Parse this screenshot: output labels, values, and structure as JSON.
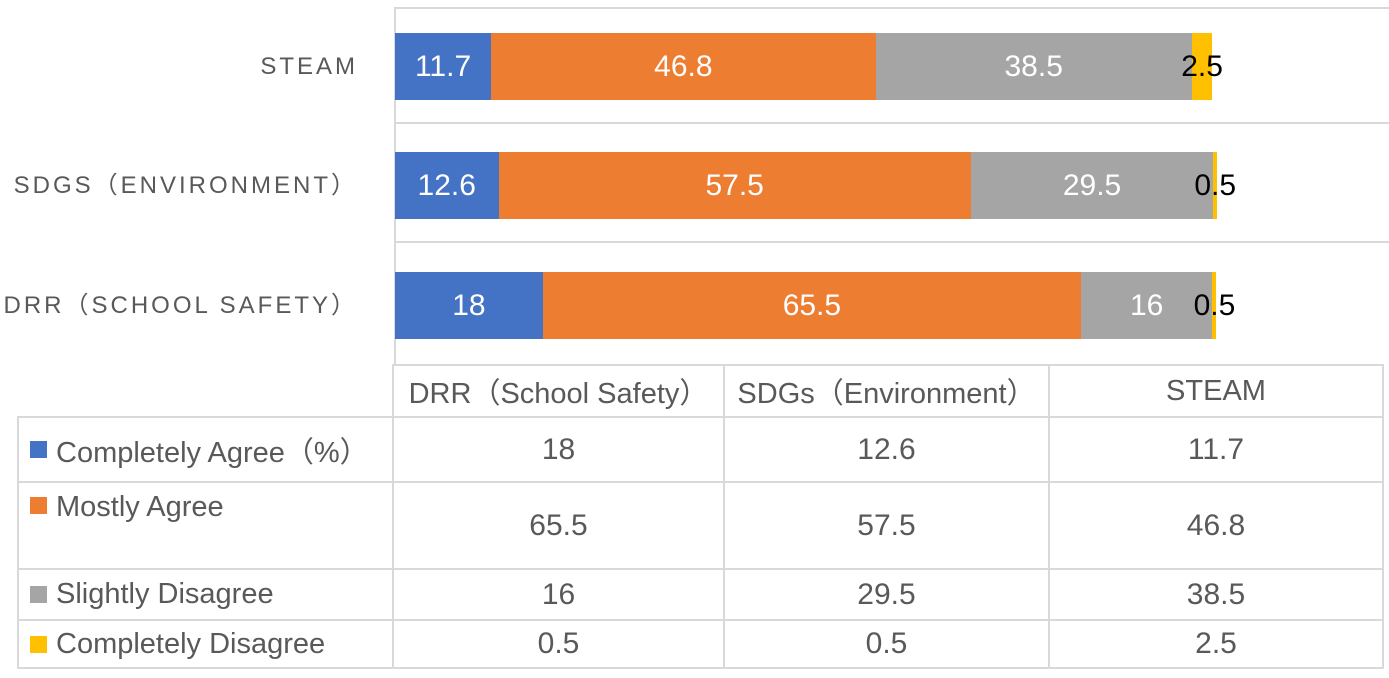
{
  "chart_data": {
    "type": "bar",
    "orientation": "horizontal",
    "stacked": true,
    "title": "",
    "xlabel": "",
    "ylabel": "",
    "categories": [
      "STEAM",
      "SDGS（ENVIRONMENT）",
      "DRR（SCHOOL SAFETY）"
    ],
    "series": [
      {
        "name": "Completely Agree（%）",
        "color": "#4472C4",
        "label_color": "#FFFFFF",
        "label_overflow": false,
        "values": [
          11.7,
          12.6,
          18
        ],
        "labels": [
          "11.7",
          "12.6",
          "18"
        ]
      },
      {
        "name": "Mostly Agree",
        "color": "#ED7D31",
        "label_color": "#FFFFFF",
        "label_overflow": false,
        "values": [
          46.8,
          57.5,
          65.5
        ],
        "labels": [
          "46.8",
          "57.5",
          "65.5"
        ]
      },
      {
        "name": "Slightly Disagree",
        "color": "#A5A5A5",
        "label_color": "#FFFFFF",
        "label_overflow": false,
        "values": [
          38.5,
          29.5,
          16
        ],
        "labels": [
          "38.5",
          "29.5",
          "16"
        ]
      },
      {
        "name": "Completely Disagree",
        "color": "#FFC000",
        "label_color": "#000000",
        "label_overflow": true,
        "values": [
          2.5,
          0.5,
          0.5
        ],
        "labels": [
          "2.5",
          "0.5",
          "0.5"
        ]
      }
    ],
    "xlim": [
      0,
      121
    ],
    "value_axis_visible": false,
    "gridlines": "category-boundaries-horizontal",
    "legend_position": "data-table-left-column"
  },
  "table": {
    "column_headers": [
      "DRR（School Safety）",
      "SDGs（Environment）",
      "STEAM"
    ],
    "rows": [
      {
        "label": "Completely Agree（%）",
        "swatch_color": "#4472C4",
        "values": [
          "18",
          "12.6",
          "11.7"
        ]
      },
      {
        "label": "Mostly Agree",
        "swatch_color": "#ED7D31",
        "values": [
          "65.5",
          "57.5",
          "46.8"
        ]
      },
      {
        "label": "Slightly Disagree",
        "swatch_color": "#A5A5A5",
        "values": [
          "16",
          "29.5",
          "38.5"
        ]
      },
      {
        "label": "Completely Disagree",
        "swatch_color": "#FFC000",
        "values": [
          "0.5",
          "0.5",
          "2.5"
        ]
      }
    ]
  },
  "colors": {
    "text": "#595959",
    "grid": "#D9D9D9",
    "outside_label": "#000000",
    "background": "#FFFFFF"
  }
}
